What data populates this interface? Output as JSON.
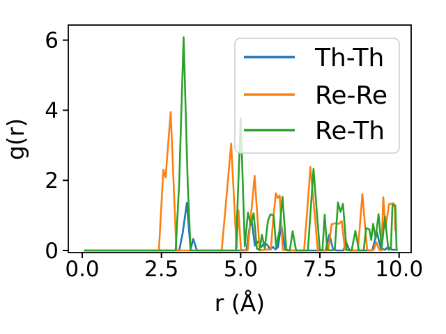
{
  "figure": {
    "background": "#ffffff",
    "text_color": "#000000",
    "spine_color": "#000000",
    "legend_border_color": "#cccccc",
    "legend_bg": "rgba(255,255,255,0.8)"
  },
  "chart_data": {
    "type": "line",
    "title": "",
    "xlabel": "r (Å)",
    "ylabel": "g(r)",
    "xlim": [
      -0.44,
      10.38
    ],
    "ylim": [
      -0.06,
      6.43
    ],
    "xticks": [
      0.0,
      2.5,
      5.0,
      7.5,
      10.0
    ],
    "xtick_labels": [
      "0.0",
      "2.5",
      "5.0",
      "7.5",
      "10.0"
    ],
    "yticks": [
      0,
      2,
      4,
      6
    ],
    "ytick_labels": [
      "0",
      "2",
      "4",
      "6"
    ],
    "grid": false,
    "legend": {
      "position": "upper right",
      "labels": [
        "Th-Th",
        "Re-Re",
        "Re-Th"
      ]
    },
    "series": [
      {
        "name": "Th-Th",
        "color": "#1f77b4",
        "points": [
          [
            0.05,
            0
          ],
          [
            3.06,
            0
          ],
          [
            3.17,
            0.5
          ],
          [
            3.3,
            1.36
          ],
          [
            3.42,
            0.02
          ],
          [
            3.5,
            0.33
          ],
          [
            3.62,
            0
          ],
          [
            5.18,
            0
          ],
          [
            5.33,
            0.97
          ],
          [
            5.45,
            0.14
          ],
          [
            5.55,
            0.26
          ],
          [
            5.65,
            0.1
          ],
          [
            5.75,
            0.22
          ],
          [
            5.85,
            0.15
          ],
          [
            5.93,
            0.02
          ],
          [
            6.02,
            0.1
          ],
          [
            6.1,
            0.03
          ],
          [
            6.18,
            0.1
          ],
          [
            6.28,
            0.74
          ],
          [
            6.4,
            0.05
          ],
          [
            6.52,
            0
          ],
          [
            7.68,
            0
          ],
          [
            7.8,
            0.46
          ],
          [
            7.92,
            0.02
          ],
          [
            8.05,
            0
          ],
          [
            8.24,
            0
          ],
          [
            8.33,
            0.23
          ],
          [
            8.44,
            0
          ],
          [
            9.15,
            0
          ],
          [
            9.3,
            0.52
          ],
          [
            9.42,
            0.06
          ],
          [
            9.55,
            0.02
          ],
          [
            9.65,
            0.1
          ],
          [
            9.78,
            0.02
          ],
          [
            9.95,
            0.02
          ]
        ]
      },
      {
        "name": "Re-Re",
        "color": "#ff7f0e",
        "points": [
          [
            0.05,
            0
          ],
          [
            2.42,
            0
          ],
          [
            2.56,
            2.3
          ],
          [
            2.63,
            2.08
          ],
          [
            2.79,
            3.95
          ],
          [
            2.97,
            0
          ],
          [
            4.4,
            0
          ],
          [
            4.55,
            1.5
          ],
          [
            4.7,
            3.05
          ],
          [
            4.87,
            0.06
          ],
          [
            4.93,
            1.15
          ],
          [
            5.01,
            0.02
          ],
          [
            5.22,
            0
          ],
          [
            5.33,
            1.05
          ],
          [
            5.44,
            2.13
          ],
          [
            5.6,
            0
          ],
          [
            5.95,
            0.04
          ],
          [
            6.03,
            0.93
          ],
          [
            6.11,
            1.63
          ],
          [
            6.17,
            1.5
          ],
          [
            6.23,
            1.57
          ],
          [
            6.33,
            0.02
          ],
          [
            6.45,
            0
          ],
          [
            7.0,
            0
          ],
          [
            7.1,
            1.15
          ],
          [
            7.2,
            2.38
          ],
          [
            7.33,
            1.1
          ],
          [
            7.43,
            0
          ],
          [
            7.76,
            0
          ],
          [
            7.87,
            0.75
          ],
          [
            8.0,
            0.78
          ],
          [
            8.1,
            0.76
          ],
          [
            8.19,
            0.84
          ],
          [
            8.29,
            0.02
          ],
          [
            8.4,
            0
          ],
          [
            8.7,
            0
          ],
          [
            8.84,
            1.61
          ],
          [
            8.99,
            0.02
          ],
          [
            9.08,
            0
          ],
          [
            9.2,
            0.02
          ],
          [
            9.28,
            0.24
          ],
          [
            9.37,
            0.02
          ],
          [
            9.44,
            0
          ],
          [
            9.5,
            1.52
          ],
          [
            9.57,
            0.63
          ],
          [
            9.68,
            1.32
          ],
          [
            9.82,
            1.35
          ],
          [
            9.86,
            1.3
          ],
          [
            9.88,
            0.56
          ]
        ]
      },
      {
        "name": "Re-Th",
        "color": "#2ca02c",
        "points": [
          [
            0.05,
            0
          ],
          [
            2.95,
            0
          ],
          [
            3.06,
            1.9
          ],
          [
            3.2,
            6.08
          ],
          [
            3.33,
            1.9
          ],
          [
            3.42,
            0
          ],
          [
            4.85,
            0
          ],
          [
            5.0,
            3.78
          ],
          [
            5.13,
            0.12
          ],
          [
            5.23,
            1.08
          ],
          [
            5.32,
            0.73
          ],
          [
            5.41,
            1.06
          ],
          [
            5.51,
            0.05
          ],
          [
            5.6,
            0.02
          ],
          [
            5.67,
            0.45
          ],
          [
            5.76,
            0.06
          ],
          [
            5.86,
            0.85
          ],
          [
            5.94,
            1.03
          ],
          [
            6.04,
            1.0
          ],
          [
            6.12,
            0.1
          ],
          [
            6.22,
            0.55
          ],
          [
            6.32,
            1.53
          ],
          [
            6.44,
            0.02
          ],
          [
            6.55,
            0
          ],
          [
            6.64,
            0.55
          ],
          [
            6.75,
            0
          ],
          [
            7.12,
            0
          ],
          [
            7.3,
            2.33
          ],
          [
            7.42,
            0.9
          ],
          [
            7.5,
            0
          ],
          [
            7.58,
            0.02
          ],
          [
            7.65,
            1.02
          ],
          [
            7.73,
            0.02
          ],
          [
            7.85,
            0
          ],
          [
            7.97,
            0.02
          ],
          [
            8.07,
            1.37
          ],
          [
            8.15,
            1.1
          ],
          [
            8.23,
            1.33
          ],
          [
            8.34,
            0.02
          ],
          [
            8.5,
            0
          ],
          [
            8.62,
            0.56
          ],
          [
            8.73,
            0
          ],
          [
            8.88,
            0
          ],
          [
            8.96,
            0.64
          ],
          [
            9.06,
            0.6
          ],
          [
            9.12,
            0.3
          ],
          [
            9.18,
            0.76
          ],
          [
            9.26,
            0.35
          ],
          [
            9.35,
            1.04
          ],
          [
            9.45,
            0.06
          ],
          [
            9.55,
            0.97
          ],
          [
            9.66,
            0.02
          ],
          [
            9.74,
            0.05
          ],
          [
            9.79,
            1.3
          ],
          [
            9.88,
            1.28
          ],
          [
            9.92,
            0.02
          ],
          [
            9.95,
            0
          ]
        ]
      }
    ]
  }
}
